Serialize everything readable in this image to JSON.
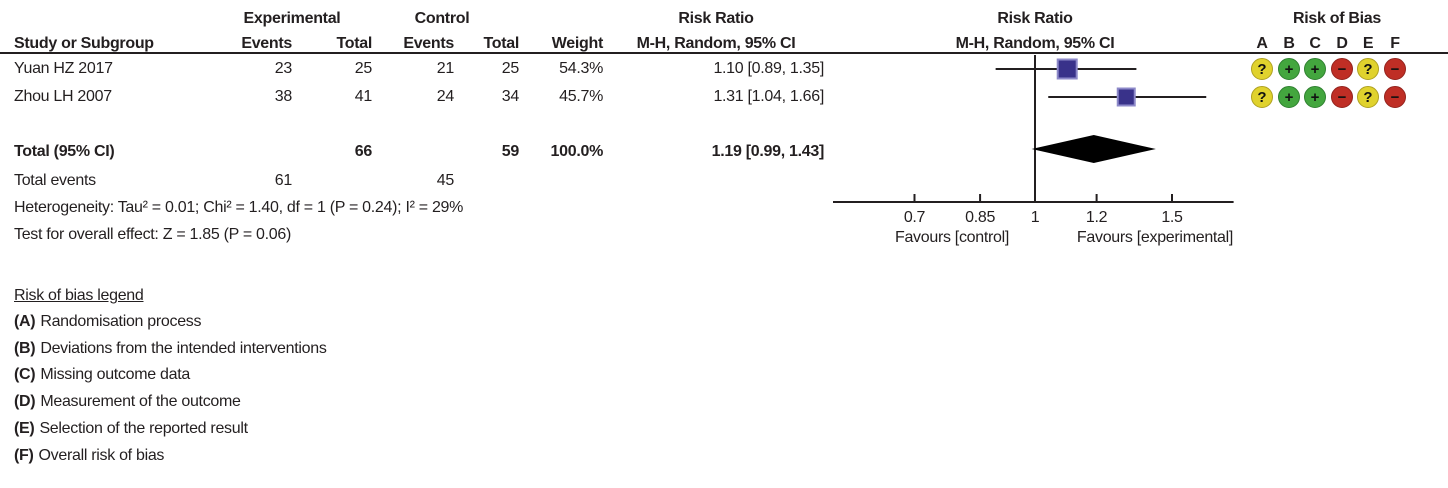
{
  "header": {
    "experimental": "Experimental",
    "control": "Control",
    "study_col": "Study or Subgroup",
    "events_col": "Events",
    "total_col": "Total",
    "weight_col": "Weight",
    "risk_ratio_title": "Risk Ratio",
    "mh_random_ci": "M-H, Random, 95% CI",
    "risk_of_bias_title": "Risk of Bias",
    "rob_cols": [
      "A",
      "B",
      "C",
      "D",
      "E",
      "F"
    ]
  },
  "studies": [
    {
      "name": "Yuan HZ 2017",
      "events_exp": "23",
      "total_exp": "25",
      "events_ctl": "21",
      "total_ctl": "25",
      "weight": "54.3%",
      "rr_ci": "1.10 [0.89, 1.35]",
      "rob": [
        "?",
        "+",
        "+",
        "−",
        "?",
        "−"
      ]
    },
    {
      "name": "Zhou LH 2007",
      "events_exp": "38",
      "total_exp": "41",
      "events_ctl": "24",
      "total_ctl": "34",
      "weight": "45.7%",
      "rr_ci": "1.31 [1.04, 1.66]",
      "rob": [
        "?",
        "+",
        "+",
        "−",
        "?",
        "−"
      ]
    }
  ],
  "totals": {
    "label": "Total (95% CI)",
    "total_exp": "66",
    "total_ctl": "59",
    "weight": "100.0%",
    "rr_ci": "1.19 [0.99, 1.43]",
    "events_label": "Total events",
    "events_exp": "61",
    "events_ctl": "45",
    "heterogeneity": "Heterogeneity: Tau² = 0.01; Chi² = 1.40, df = 1 (P = 0.24); I² = 29%",
    "overall_effect": "Test for overall effect: Z = 1.85 (P = 0.06)"
  },
  "legend": {
    "title": "Risk of bias legend",
    "items": [
      {
        "key": "(A)",
        "text": "Randomisation process"
      },
      {
        "key": "(B)",
        "text": "Deviations from the intended interventions"
      },
      {
        "key": "(C)",
        "text": "Missing outcome data"
      },
      {
        "key": "(D)",
        "text": "Measurement of the outcome"
      },
      {
        "key": "(E)",
        "text": "Selection of the reported result"
      },
      {
        "key": "(F)",
        "text": "Overall risk of bias"
      }
    ]
  },
  "colors": {
    "text": "#231F20",
    "line": "#231F20",
    "marker_fill": "#39328A",
    "marker_border": "#8D89C9",
    "diamond": "#000000",
    "rob_yellow": "#E0D22D",
    "rob_green": "#43A63E",
    "rob_red": "#BF2E25"
  },
  "chart_data": {
    "type": "scatter",
    "subtype": "forest_plot",
    "title": "Risk Ratio",
    "effect_model": "M-H, Random, 95% CI",
    "x_scale": "log",
    "studies": [
      {
        "name": "Yuan HZ 2017",
        "rr": 1.1,
        "ci_low": 0.89,
        "ci_high": 1.35,
        "weight_pct": 54.3
      },
      {
        "name": "Zhou LH 2007",
        "rr": 1.31,
        "ci_low": 1.04,
        "ci_high": 1.66,
        "weight_pct": 45.7
      }
    ],
    "total": {
      "label": "Total (95% CI)",
      "rr": 1.19,
      "ci_low": 0.99,
      "ci_high": 1.43,
      "weight_pct": 100.0
    },
    "x_ticks": [
      0.7,
      0.85,
      1,
      1.2,
      1.5
    ],
    "x_range": [
      0.55,
      1.8
    ],
    "null_line": 1,
    "xlabel_left": "Favours [control]",
    "xlabel_right": "Favours [experimental]",
    "grid": false
  }
}
